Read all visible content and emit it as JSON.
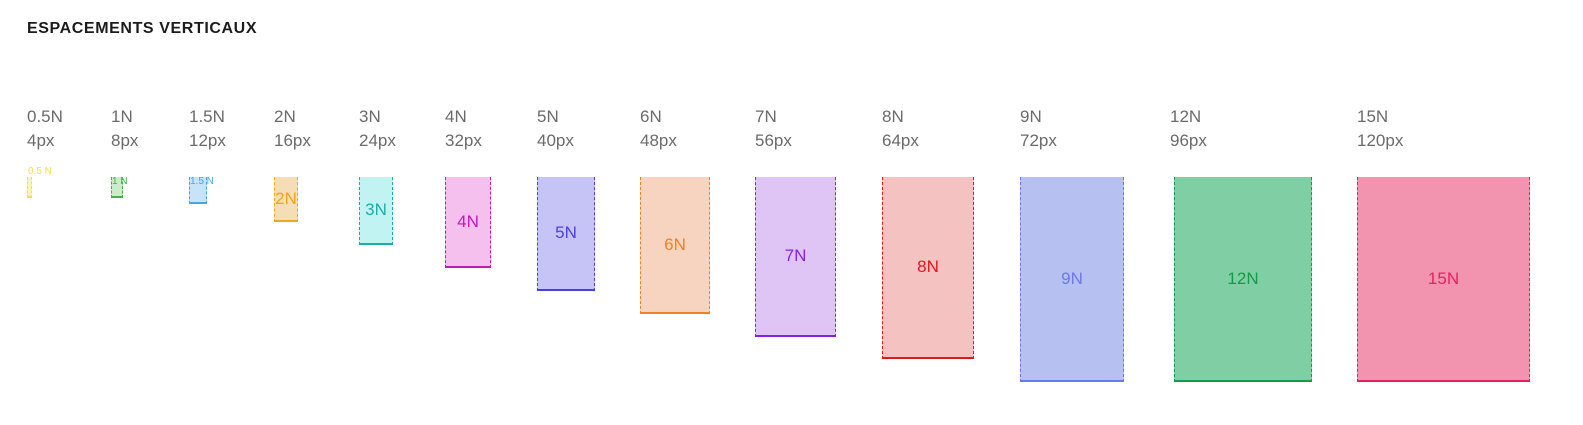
{
  "title": "ESPACEMENTS VERTICAUX",
  "items": [
    {
      "name": "0.5N",
      "px": "4px",
      "label": "0.5",
      "box_label": "N",
      "color": "#f4e04d",
      "bg": "#fbf3b8"
    },
    {
      "name": "1N",
      "px": "8px",
      "label": "1",
      "box_label": "N",
      "color": "#44b24c",
      "bg": "#cdeacb"
    },
    {
      "name": "1.5N",
      "px": "12px",
      "label": "1.5",
      "box_label": "N",
      "color": "#4aa3e8",
      "bg": "#c7e3f8"
    },
    {
      "name": "2N",
      "px": "16px",
      "label": "2N",
      "color": "#f0a51e",
      "bg": "#f5ddb5"
    },
    {
      "name": "3N",
      "px": "24px",
      "label": "3N",
      "color": "#1aaea8",
      "bg": "#c2f3f3"
    },
    {
      "name": "4N",
      "px": "32px",
      "label": "4N",
      "color": "#c219b8",
      "bg": "#f5c0ee"
    },
    {
      "name": "5N",
      "px": "40px",
      "label": "5N",
      "color": "#4a3fe0",
      "bg": "#c6c4f6"
    },
    {
      "name": "6N",
      "px": "48px",
      "label": "6N",
      "color": "#f08125",
      "bg": "#f6d4bf"
    },
    {
      "name": "7N",
      "px": "56px",
      "label": "7N",
      "color": "#8b1de8",
      "bg": "#dfc5f5"
    },
    {
      "name": "8N",
      "px": "64px",
      "label": "8N",
      "color": "#e3161b",
      "bg": "#f4c2c1"
    },
    {
      "name": "9N",
      "px": "72px",
      "label": "9N",
      "color": "#6b79ea",
      "bg": "#b6c0f1"
    },
    {
      "name": "12N",
      "px": "96px",
      "label": "12N",
      "color": "#139a4b",
      "bg": "#80ceA4"
    },
    {
      "name": "15N",
      "px": "120px",
      "label": "15N",
      "color": "#e2245e",
      "bg": "#f294b0"
    }
  ]
}
